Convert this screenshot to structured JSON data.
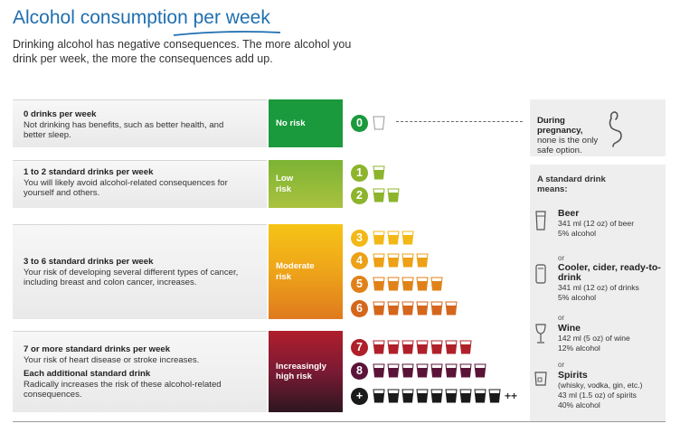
{
  "header": {
    "title": "Alcohol consumption per week",
    "intro": "Drinking alcohol has negative consequences. The more alcohol you drink per week, the more the consequences add up."
  },
  "rows": [
    {
      "heading": "0 drinks per week",
      "body": "Not drinking has benefits, such as better health, and better sleep.",
      "risk": "No risk"
    },
    {
      "heading": "1 to 2 standard drinks per week",
      "body": "You will likely avoid alcohol-related consequences for yourself and others.",
      "risk_line1": "Low",
      "risk_line2": "risk"
    },
    {
      "heading": "3 to 6 standard drinks per week",
      "body": "Your risk of developing several different types of cancer, including breast and colon cancer, increases.",
      "risk_line1": "Moderate",
      "risk_line2": "risk"
    },
    {
      "heading": "7 or more standard drinks per week",
      "body": "Your risk of heart disease or stroke increases.",
      "heading2": "Each additional standard drink",
      "body2": "Radically increases the risk of these alcohol-related consequences.",
      "risk_line1": "Increasingly",
      "risk_line2": "high risk"
    }
  ],
  "drinks": [
    {
      "label": "0",
      "count": 0,
      "color": "#1a9a3c"
    },
    {
      "label": "1",
      "count": 1,
      "color": "#8cb42c"
    },
    {
      "label": "2",
      "count": 2,
      "color": "#8cb42c"
    },
    {
      "label": "3",
      "count": 3,
      "color": "#f2b817"
    },
    {
      "label": "4",
      "count": 4,
      "color": "#eda116"
    },
    {
      "label": "5",
      "count": 5,
      "color": "#e0821a"
    },
    {
      "label": "6",
      "count": 6,
      "color": "#d4671c"
    },
    {
      "label": "7",
      "count": 7,
      "color": "#b0202a"
    },
    {
      "label": "8",
      "count": 8,
      "color": "#5a1438"
    },
    {
      "label": "+",
      "count": 9,
      "color": "#1a1a1a",
      "suffix": "++"
    }
  ],
  "colors": {
    "no_risk": "#1a9a3c",
    "title": "#1f6fb0"
  },
  "sidebar": {
    "pregnancy_heading": "During pregnancy,",
    "pregnancy_body": "none is the only safe option.",
    "standard_heading": "A standard drink means:",
    "or": "or",
    "items": [
      {
        "name": "Beer",
        "detail1": "341 ml (12 oz) of beer",
        "detail2": "5% alcohol",
        "icon": "beer-glass-icon"
      },
      {
        "name": "Cooler, cider, ready-to-drink",
        "detail1": "341 ml (12 oz) of drinks",
        "detail2": "5% alcohol",
        "icon": "can-icon"
      },
      {
        "name": "Wine",
        "detail1": "142 ml (5 oz) of wine",
        "detail2": "12% alcohol",
        "icon": "wine-glass-icon"
      },
      {
        "name": "Spirits",
        "name_extra": "(whisky, vodka, gin, etc.)",
        "detail1": "43 ml (1.5 oz) of spirits",
        "detail2": "40% alcohol",
        "icon": "spirits-glass-icon"
      }
    ]
  }
}
